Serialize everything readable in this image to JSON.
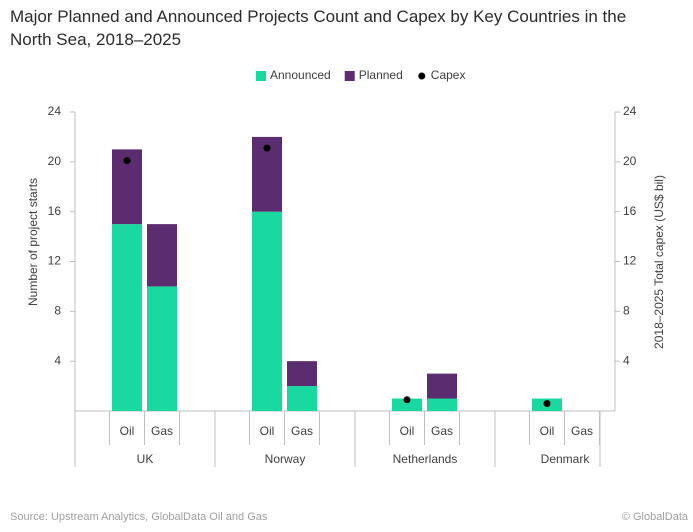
{
  "chart_data": {
    "type": "bar",
    "stacked": true,
    "title": "Major Planned and Announced Projects Count and Capex by Key Countries in the North Sea, 2018–2025",
    "y_label": "Number of project starts",
    "y2_label": "2018–2025 Total capex (US$ bil)",
    "groups": [
      "UK",
      "Norway",
      "Netherlands",
      "Denmark"
    ],
    "categories": [
      "Oil",
      "Gas",
      "Oil",
      "Gas",
      "Oil",
      "Gas",
      "Oil",
      "Gas"
    ],
    "series": [
      {
        "name": "Announced",
        "color": "#1ad9a0",
        "values": [
          15,
          10,
          16,
          2,
          1,
          1,
          1,
          0
        ]
      },
      {
        "name": "Planned",
        "color": "#5b2c6f",
        "values": [
          6,
          5,
          6,
          2,
          0,
          2,
          0,
          0
        ]
      },
      {
        "name": "Capex",
        "type": "scatter",
        "axis": "y2",
        "color": "#000000",
        "values": [
          20.1,
          null,
          21.1,
          null,
          0.9,
          null,
          0.6,
          null
        ]
      }
    ],
    "ylim": [
      0,
      24
    ],
    "yticks": [
      4,
      8,
      12,
      16,
      20,
      24
    ],
    "y2lim": [
      0,
      24
    ],
    "y2ticks": [
      4,
      8,
      12,
      16,
      20,
      24
    ],
    "legend": "top",
    "source": "Source: Upstream Analytics, GlobalData Oil and Gas",
    "copyright": "© GlobalData"
  }
}
